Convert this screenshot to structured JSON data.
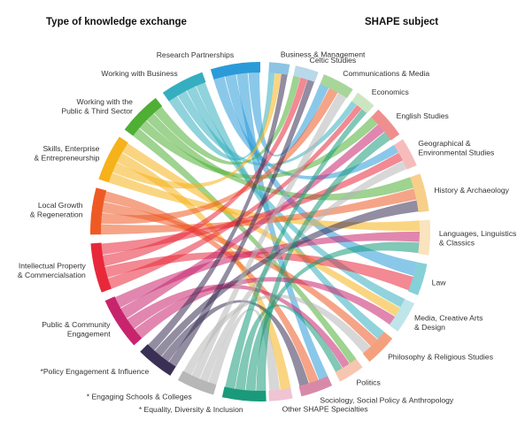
{
  "left_heading": "Type of knowledge exchange",
  "right_heading": "SHAPE subject",
  "left_categories": [
    {
      "label_lines": [
        "Research Partnerships"
      ],
      "color": "#2a9bd8"
    },
    {
      "label_lines": [
        "Working with Business"
      ],
      "color": "#35aec0"
    },
    {
      "label_lines": [
        "Working with the",
        "Public & Third Sector"
      ],
      "color": "#4fae34"
    },
    {
      "label_lines": [
        "Skills, Enterprise",
        "& Entrepreneurship"
      ],
      "color": "#f5b21a"
    },
    {
      "label_lines": [
        "Local Growth",
        "& Regeneration"
      ],
      "color": "#ef5a24"
    },
    {
      "label_lines": [
        "Intellectual Property",
        "& Commercialsation"
      ],
      "color": "#e8283a"
    },
    {
      "label_lines": [
        "Public & Community",
        "Engagement"
      ],
      "color": "#c8246e"
    },
    {
      "label_lines": [
        "*Policy Engagement & Influence"
      ],
      "color": "#3a3055"
    },
    {
      "label_lines": [
        "* Engaging Schools & Colleges"
      ],
      "color": "#b7b7b7"
    },
    {
      "label_lines": [
        "* Equality, Diversity & Inclusion"
      ],
      "color": "#1a9a7a"
    }
  ],
  "right_categories": [
    {
      "label_lines": [
        "Business & Management"
      ],
      "color": "#8ec4e3"
    },
    {
      "label_lines": [
        "Celtic Studies"
      ],
      "color": "#b9d8ea"
    },
    {
      "label_lines": [
        "Communications & Media"
      ],
      "color": "#a8d69a"
    },
    {
      "label_lines": [
        "Economics"
      ],
      "color": "#cde6c2"
    },
    {
      "label_lines": [
        "English Studies"
      ],
      "color": "#f08e8e"
    },
    {
      "label_lines": [
        "Geographical &",
        "Environmental Studies"
      ],
      "color": "#f6bcbc"
    },
    {
      "label_lines": [
        "History & Archaeology"
      ],
      "color": "#f7cf8a"
    },
    {
      "label_lines": [
        "Languages, Linguistics",
        "& Classics"
      ],
      "color": "#fae3bd"
    },
    {
      "label_lines": [
        "Law"
      ],
      "color": "#86d0d8"
    },
    {
      "label_lines": [
        "Media, Creative Arts",
        "& Design"
      ],
      "color": "#bfe5ea"
    },
    {
      "label_lines": [
        "Philosophy & Religious Studies"
      ],
      "color": "#f5a07c"
    },
    {
      "label_lines": [
        "Politics"
      ],
      "color": "#f7c6b0"
    },
    {
      "label_lines": [
        "Sociology, Social Policy & Anthropology"
      ],
      "color": "#d889a8"
    },
    {
      "label_lines": [
        "Other SHAPE Specialties"
      ],
      "color": "#efc4d3"
    }
  ]
}
